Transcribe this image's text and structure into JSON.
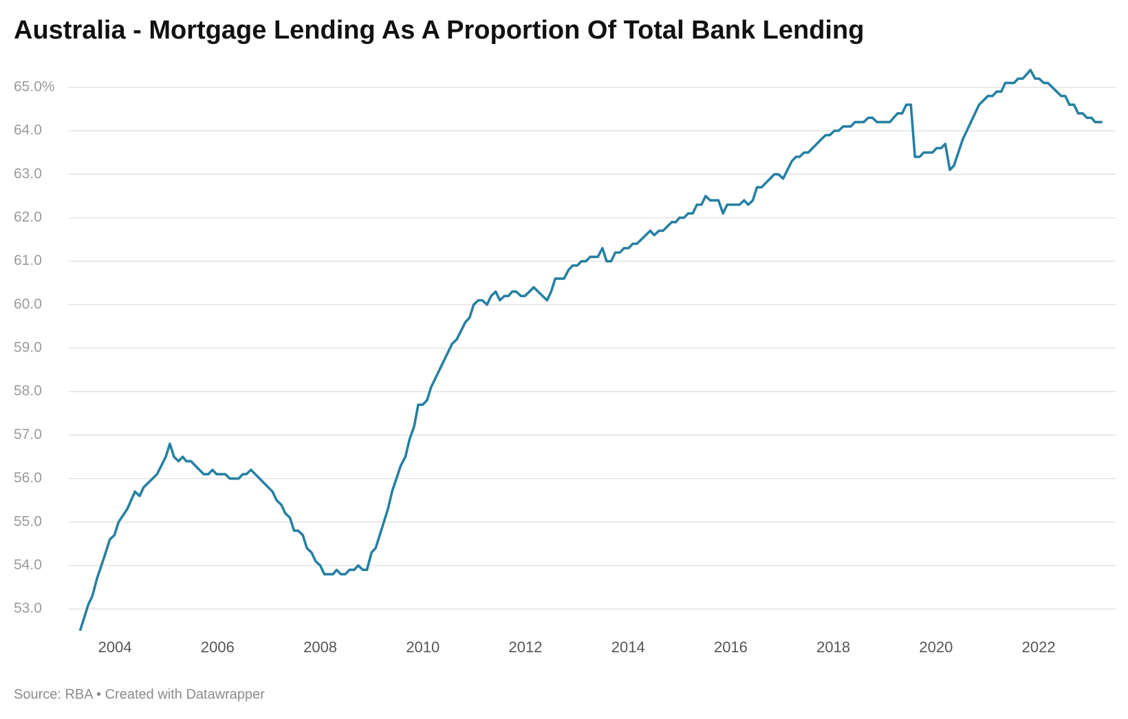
{
  "chart_data": {
    "type": "line",
    "title": "Australia - Mortgage Lending As A Proportion Of Total Bank Lending",
    "source": "Source: RBA • Created with Datawrapper",
    "xlim": [
      2003.1,
      2023.5
    ],
    "xticks": [
      2004,
      2006,
      2008,
      2010,
      2012,
      2014,
      2016,
      2018,
      2020,
      2022
    ],
    "ylim": [
      52.4,
      65.6
    ],
    "yticks": [
      {
        "value": 53,
        "label": "53.0"
      },
      {
        "value": 54,
        "label": "54.0"
      },
      {
        "value": 55,
        "label": "55.0"
      },
      {
        "value": 56,
        "label": "56.0"
      },
      {
        "value": 57,
        "label": "57.0"
      },
      {
        "value": 58,
        "label": "58.0"
      },
      {
        "value": 59,
        "label": "59.0"
      },
      {
        "value": 60,
        "label": "60.0"
      },
      {
        "value": 61,
        "label": "61.0"
      },
      {
        "value": 62,
        "label": "62.0"
      },
      {
        "value": 63,
        "label": "63.0"
      },
      {
        "value": 64,
        "label": "64.0"
      },
      {
        "value": 65,
        "label": "65.0%"
      }
    ],
    "grid": true,
    "x": [
      2003.32,
      2003.48,
      2003.56,
      2003.65,
      2003.82,
      2003.9,
      2003.99,
      2004.07,
      2004.24,
      2004.39,
      2004.48,
      2004.56,
      2004.82,
      2004.99,
      2005.07,
      2005.15,
      2005.24,
      2005.32,
      2005.39,
      2005.48,
      2005.73,
      2005.82,
      2005.9,
      2005.98,
      2006.15,
      2006.24,
      2006.41,
      2006.49,
      2006.56,
      2006.65,
      2007.07,
      2007.15,
      2007.24,
      2007.32,
      2007.41,
      2007.49,
      2007.57,
      2007.66,
      2007.74,
      2007.83,
      2007.91,
      2008.0,
      2008.08,
      2008.25,
      2008.32,
      2008.4,
      2008.49,
      2008.57,
      2008.66,
      2008.74,
      2008.83,
      2008.91,
      2009.0,
      2009.08,
      2009.32,
      2009.4,
      2009.57,
      2009.66,
      2009.74,
      2009.83,
      2009.91,
      2010.0,
      2010.08,
      2010.16,
      2010.57,
      2010.66,
      2010.83,
      2010.91,
      2010.99,
      2011.08,
      2011.16,
      2011.25,
      2011.33,
      2011.42,
      2011.5,
      2011.59,
      2011.67,
      2011.74,
      2011.82,
      2011.91,
      2011.99,
      2012.16,
      2012.42,
      2012.5,
      2012.58,
      2012.75,
      2012.84,
      2012.92,
      2013.01,
      2013.09,
      2013.18,
      2013.26,
      2013.41,
      2013.5,
      2013.58,
      2013.67,
      2013.75,
      2013.84,
      2013.92,
      2014.01,
      2014.09,
      2014.17,
      2014.43,
      2014.51,
      2014.6,
      2014.68,
      2014.85,
      2014.93,
      2015.0,
      2015.09,
      2015.17,
      2015.26,
      2015.34,
      2015.43,
      2015.51,
      2015.6,
      2015.76,
      2015.85,
      2015.93,
      2016.17,
      2016.26,
      2016.34,
      2016.43,
      2016.51,
      2016.6,
      2016.85,
      2016.93,
      2017.02,
      2017.19,
      2017.27,
      2017.34,
      2017.43,
      2017.51,
      2017.76,
      2017.85,
      2017.93,
      2018.02,
      2018.1,
      2018.19,
      2018.34,
      2018.42,
      2018.59,
      2018.68,
      2018.76,
      2018.85,
      2019.1,
      2019.25,
      2019.34,
      2019.42,
      2019.51,
      2019.59,
      2019.68,
      2019.76,
      2019.93,
      2020.01,
      2020.1,
      2020.18,
      2020.27,
      2020.35,
      2020.52,
      2020.84,
      2021.01,
      2021.1,
      2021.18,
      2021.27,
      2021.35,
      2021.52,
      2021.6,
      2021.69,
      2021.84,
      2021.93,
      2022.01,
      2022.1,
      2022.18,
      2022.44,
      2022.52,
      2022.6,
      2022.69,
      2022.77,
      2022.86,
      2022.94,
      2023.03,
      2023.1,
      2023.24
    ],
    "series": [
      {
        "color": "#2580a1",
        "values": [
          52.5,
          53.1,
          53.3,
          53.7,
          54.3,
          54.6,
          54.7,
          55.0,
          55.3,
          55.7,
          55.6,
          55.8,
          56.1,
          56.5,
          56.8,
          56.5,
          56.4,
          56.5,
          56.4,
          56.4,
          56.1,
          56.1,
          56.2,
          56.1,
          56.1,
          56.0,
          56.0,
          56.1,
          56.1,
          56.2,
          55.7,
          55.5,
          55.4,
          55.2,
          55.1,
          54.8,
          54.8,
          54.7,
          54.4,
          54.3,
          54.1,
          54.0,
          53.8,
          53.8,
          53.9,
          53.8,
          53.8,
          53.9,
          53.9,
          54.0,
          53.9,
          53.9,
          54.3,
          54.4,
          55.3,
          55.7,
          56.3,
          56.5,
          56.9,
          57.2,
          57.7,
          57.7,
          57.8,
          58.1,
          59.1,
          59.2,
          59.6,
          59.7,
          60.0,
          60.1,
          60.1,
          60.0,
          60.2,
          60.3,
          60.1,
          60.2,
          60.2,
          60.3,
          60.3,
          60.2,
          60.2,
          60.4,
          60.1,
          60.3,
          60.6,
          60.6,
          60.8,
          60.9,
          60.9,
          61.0,
          61.0,
          61.1,
          61.1,
          61.3,
          61.0,
          61.0,
          61.2,
          61.2,
          61.3,
          61.3,
          61.4,
          61.4,
          61.7,
          61.6,
          61.7,
          61.7,
          61.9,
          61.9,
          62.0,
          62.0,
          62.1,
          62.1,
          62.3,
          62.3,
          62.5,
          62.4,
          62.4,
          62.1,
          62.3,
          62.3,
          62.4,
          62.3,
          62.4,
          62.7,
          62.7,
          63.0,
          63.0,
          62.9,
          63.3,
          63.4,
          63.4,
          63.5,
          63.5,
          63.8,
          63.9,
          63.9,
          64.0,
          64.0,
          64.1,
          64.1,
          64.2,
          64.2,
          64.3,
          64.3,
          64.2,
          64.2,
          64.4,
          64.4,
          64.6,
          64.6,
          63.4,
          63.4,
          63.5,
          63.5,
          63.6,
          63.6,
          63.7,
          63.1,
          63.2,
          63.8,
          64.6,
          64.8,
          64.8,
          64.9,
          64.9,
          65.1,
          65.1,
          65.2,
          65.2,
          65.4,
          65.2,
          65.2,
          65.1,
          65.1,
          64.8,
          64.8,
          64.6,
          64.6,
          64.4,
          64.4,
          64.3,
          64.3,
          64.2,
          64.2
        ]
      }
    ]
  }
}
